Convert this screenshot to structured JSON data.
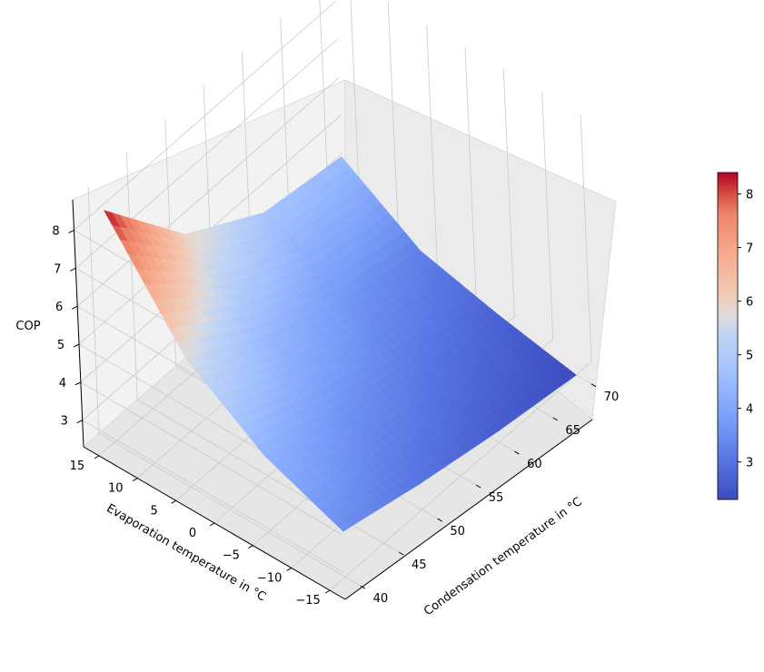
{
  "chart_data": {
    "type": "surface",
    "xlabel": "Condensation temperature in °C",
    "ylabel": "Evaporation temperature in °C",
    "zlabel": "COP",
    "x_ticks": [
      40,
      45,
      50,
      55,
      60,
      65,
      70
    ],
    "y_ticks": [
      -15,
      -10,
      -5,
      0,
      5,
      10,
      15
    ],
    "z_ticks": [
      3,
      4,
      5,
      6,
      7,
      8
    ],
    "x_range": [
      38,
      72
    ],
    "y_range": [
      -17,
      17
    ],
    "z_range": [
      2.3,
      8.8
    ],
    "surface_domain": {
      "x": [
        40,
        70
      ],
      "y": [
        -15,
        15
      ]
    },
    "corner_values": [
      {
        "x": 40,
        "y": 15,
        "z": 8.4
      },
      {
        "x": 70,
        "y": 15,
        "z": 4.5
      },
      {
        "x": 40,
        "y": -15,
        "z": 3.5
      },
      {
        "x": 70,
        "y": -15,
        "z": 2.3
      }
    ],
    "grid_samples": {
      "x": [
        40,
        50,
        60,
        70
      ],
      "y": [
        -15,
        -5,
        5,
        15
      ],
      "z": [
        [
          3.5,
          3.0,
          2.6,
          2.3
        ],
        [
          4.3,
          3.6,
          3.1,
          2.7
        ],
        [
          5.7,
          4.5,
          3.7,
          3.2
        ],
        [
          8.4,
          6.0,
          4.8,
          4.5
        ]
      ]
    },
    "colorbar": {
      "colormap": "coolwarm",
      "min": 2.3,
      "max": 8.4,
      "ticks": [
        3,
        4,
        5,
        6,
        7,
        8
      ],
      "low_color": "#3b4cc0",
      "mid_color": "#dddddd",
      "high_color": "#b40426"
    },
    "pane_color": "#f2f2f2",
    "grid": true
  }
}
